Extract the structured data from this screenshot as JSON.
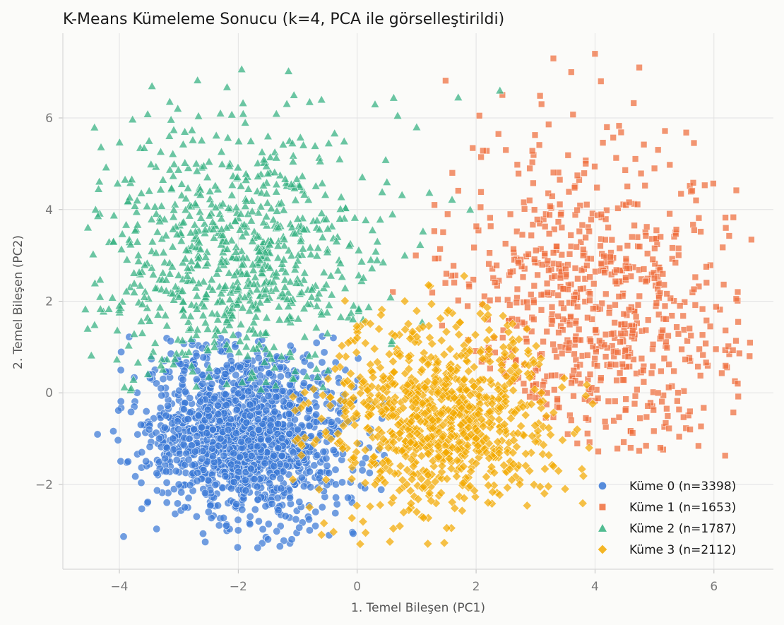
{
  "chart_data": {
    "type": "scatter",
    "title": "K-Means Kümeleme Sonucu (k=4, PCA ile görselleştirildi)",
    "xlabel": "1. Temel Bileşen (PC1)",
    "ylabel": "2. Temel Bileşen (PC2)",
    "xlim": [
      -4.95,
      7.0
    ],
    "ylim": [
      -3.85,
      7.85
    ],
    "xticks": [
      -4,
      -2,
      0,
      2,
      4,
      6
    ],
    "yticks": [
      -2,
      0,
      2,
      4,
      6
    ],
    "xtick_labels": [
      "−4",
      "−2",
      "0",
      "2",
      "4",
      "6"
    ],
    "ytick_labels": [
      "−2",
      "0",
      "2",
      "4",
      "6"
    ],
    "grid": true,
    "legend_position": "bottom-right",
    "series": [
      {
        "name": "Küme 0 (n=3398)",
        "color": "#3a78d6",
        "marker": "circle",
        "n": 3398,
        "points": [
          [
            -3.7,
            0.0
          ],
          [
            -3.5,
            -0.8
          ],
          [
            -3.2,
            -1.2
          ],
          [
            -3.0,
            -2.0
          ],
          [
            -2.9,
            -2.5
          ],
          [
            -2.7,
            -2.7
          ],
          [
            -2.5,
            -2.6
          ],
          [
            -2.2,
            -2.9
          ],
          [
            -2.0,
            -3.0
          ],
          [
            -1.8,
            -2.7
          ],
          [
            -1.5,
            -3.2
          ],
          [
            -1.3,
            -3.35
          ],
          [
            -1.1,
            -3.2
          ],
          [
            -0.8,
            -3.0
          ],
          [
            -0.7,
            -2.6
          ],
          [
            -2.3,
            -1.0
          ],
          [
            -1.8,
            -0.5
          ],
          [
            -1.4,
            -1.6
          ],
          [
            -1.0,
            -0.8
          ],
          [
            -0.6,
            0.2
          ],
          [
            -0.4,
            1.2
          ],
          [
            -0.2,
            0.5
          ],
          [
            0.2,
            -1.2
          ],
          [
            -2.6,
            0.2
          ],
          [
            -3.3,
            0.1
          ]
        ],
        "center": [
          -1.9,
          -0.9
        ],
        "spread": [
          0.85,
          0.95
        ]
      },
      {
        "name": "Küme 1 (n=1653)",
        "color": "#ee6d3c",
        "marker": "square",
        "n": 1653,
        "points": [
          [
            0.6,
            2.2
          ],
          [
            1.3,
            4.1
          ],
          [
            1.6,
            4.8
          ],
          [
            2.5,
            5.3
          ],
          [
            3.1,
            6.3
          ],
          [
            3.3,
            7.3
          ],
          [
            3.6,
            7.0
          ],
          [
            4.0,
            7.4
          ],
          [
            4.1,
            6.8
          ],
          [
            4.2,
            5.8
          ],
          [
            5.0,
            4.9
          ],
          [
            5.7,
            4.2
          ],
          [
            6.2,
            3.6
          ],
          [
            6.4,
            2.2
          ],
          [
            6.6,
            0.8
          ],
          [
            6.4,
            0.2
          ],
          [
            5.6,
            -0.8
          ],
          [
            5.1,
            -1.2
          ],
          [
            4.6,
            -1.2
          ],
          [
            3.6,
            -0.6
          ],
          [
            2.8,
            0.2
          ],
          [
            2.2,
            1.6
          ],
          [
            1.5,
            2.6
          ],
          [
            4.5,
            1.5
          ],
          [
            3.8,
            3.0
          ],
          [
            5.0,
            2.5
          ],
          [
            2.9,
            4.2
          ]
        ],
        "center": [
          3.9,
          1.8
        ],
        "spread": [
          1.25,
          1.75
        ]
      },
      {
        "name": "Küme 2 (n=1787)",
        "color": "#33b07f",
        "marker": "triangle",
        "n": 1787,
        "points": [
          [
            -4.4,
            4.0
          ],
          [
            -4.35,
            4.45
          ],
          [
            -4.1,
            3.3
          ],
          [
            -4.0,
            1.9
          ],
          [
            -3.7,
            4.2
          ],
          [
            -3.5,
            5.5
          ],
          [
            -2.9,
            5.7
          ],
          [
            -2.3,
            6.1
          ],
          [
            -1.5,
            5.6
          ],
          [
            -0.8,
            6.35
          ],
          [
            -0.6,
            6.4
          ],
          [
            0.3,
            6.3
          ],
          [
            1.0,
            5.8
          ],
          [
            1.7,
            6.45
          ],
          [
            2.4,
            6.6
          ],
          [
            1.9,
            4.0
          ],
          [
            0.8,
            3.0
          ],
          [
            0.1,
            1.6
          ],
          [
            -0.5,
            1.3
          ],
          [
            -1.4,
            1.0
          ],
          [
            -2.4,
            1.0
          ],
          [
            -3.3,
            0.6
          ],
          [
            -3.8,
            0.1
          ],
          [
            -2.8,
            3.5
          ],
          [
            -1.0,
            3.8
          ],
          [
            0.5,
            4.6
          ],
          [
            -2.0,
            2.3
          ]
        ],
        "center": [
          -2.0,
          2.9
        ],
        "spread": [
          1.2,
          1.45
        ]
      },
      {
        "name": "Küme 3 (n=2112)",
        "color": "#f2a900",
        "marker": "diamond",
        "n": 2112,
        "points": [
          [
            -1.0,
            -1.0
          ],
          [
            -0.8,
            -2.5
          ],
          [
            -0.6,
            -3.1
          ],
          [
            0.05,
            -3.3
          ],
          [
            0.55,
            -3.25
          ],
          [
            0.0,
            1.2
          ],
          [
            0.4,
            1.7
          ],
          [
            0.8,
            2.0
          ],
          [
            1.2,
            2.35
          ],
          [
            1.8,
            2.55
          ],
          [
            2.2,
            1.7
          ],
          [
            2.6,
            0.8
          ],
          [
            3.1,
            0.0
          ],
          [
            3.7,
            -0.8
          ],
          [
            3.9,
            -1.2
          ],
          [
            3.3,
            -1.6
          ],
          [
            2.6,
            -1.9
          ],
          [
            1.8,
            -2.3
          ],
          [
            1.0,
            -2.6
          ],
          [
            0.3,
            -2.0
          ],
          [
            0.6,
            -0.5
          ],
          [
            1.5,
            0.3
          ],
          [
            2.0,
            -1.0
          ],
          [
            -0.3,
            0.8
          ]
        ],
        "center": [
          1.3,
          -0.5
        ],
        "spread": [
          1.0,
          1.05
        ]
      }
    ]
  }
}
